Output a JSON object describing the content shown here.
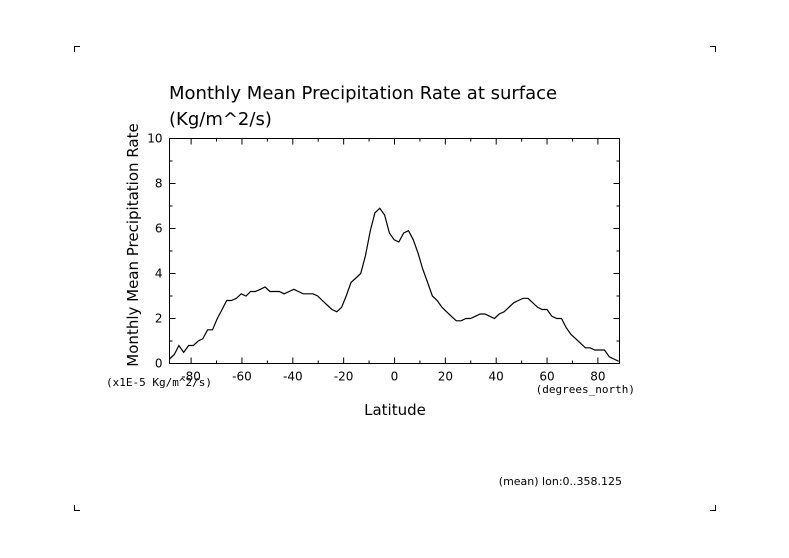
{
  "chart_data": {
    "type": "line",
    "title": "Monthly Mean Precipitation Rate at surface",
    "subtitle": "(Kg/m^2/s)",
    "xlabel": "Latitude",
    "ylabel": "Monthly Mean Precipitation Rate",
    "x_units": "(degrees_north)",
    "y_units": "(x1E-5 Kg/m^2/s)",
    "footnote": "(mean) lon:0..358.125",
    "xlim": [
      -88.5,
      88.5
    ],
    "ylim": [
      0,
      10
    ],
    "x_ticks": [
      -80,
      -60,
      -40,
      -20,
      0,
      20,
      40,
      60,
      80
    ],
    "x_tick_labels": [
      "-80",
      "-60",
      "-40",
      "-20",
      "0",
      "20",
      "40",
      "60",
      "80"
    ],
    "y_ticks": [
      0,
      2,
      4,
      6,
      8,
      10
    ],
    "y_tick_labels": [
      "0",
      "2",
      "4",
      "6",
      "8",
      "10"
    ],
    "grid": false,
    "legend": "none",
    "series": [
      {
        "color": "#000000",
        "x": [
          -88.5,
          -86.6,
          -84.8,
          -82.9,
          -81.0,
          -79.1,
          -77.2,
          -75.4,
          -73.5,
          -71.6,
          -69.7,
          -67.8,
          -66.0,
          -64.1,
          -62.2,
          -60.3,
          -58.4,
          -56.6,
          -54.7,
          -52.8,
          -50.9,
          -49.0,
          -47.2,
          -45.3,
          -43.4,
          -41.5,
          -39.6,
          -37.8,
          -35.9,
          -34.0,
          -32.1,
          -30.2,
          -28.4,
          -26.5,
          -24.6,
          -22.7,
          -20.8,
          -19.0,
          -17.1,
          -15.2,
          -13.3,
          -11.4,
          -9.5,
          -7.7,
          -5.8,
          -3.9,
          -2.0,
          -0.1,
          1.7,
          3.6,
          5.5,
          7.4,
          9.3,
          11.1,
          13.0,
          14.9,
          16.8,
          18.7,
          20.5,
          22.4,
          24.3,
          26.2,
          28.1,
          29.9,
          31.8,
          33.7,
          35.6,
          37.5,
          39.3,
          41.2,
          43.1,
          45.0,
          46.9,
          48.7,
          50.6,
          52.5,
          54.4,
          56.3,
          58.1,
          60.0,
          61.9,
          63.8,
          65.7,
          67.5,
          69.4,
          71.3,
          73.2,
          75.1,
          76.9,
          78.8,
          80.7,
          82.6,
          84.5,
          86.3,
          88.2
        ],
        "y": [
          0.2,
          0.4,
          0.8,
          0.5,
          0.8,
          0.8,
          1.0,
          1.1,
          1.5,
          1.5,
          2.0,
          2.4,
          2.8,
          2.8,
          2.9,
          3.1,
          3.0,
          3.2,
          3.2,
          3.3,
          3.4,
          3.2,
          3.2,
          3.2,
          3.1,
          3.2,
          3.3,
          3.2,
          3.1,
          3.1,
          3.1,
          3.0,
          2.8,
          2.6,
          2.4,
          2.3,
          2.5,
          3.0,
          3.6,
          3.8,
          4.0,
          4.8,
          5.9,
          6.7,
          6.9,
          6.6,
          5.8,
          5.5,
          5.4,
          5.8,
          5.9,
          5.5,
          4.9,
          4.2,
          3.6,
          3.0,
          2.8,
          2.5,
          2.3,
          2.1,
          1.9,
          1.9,
          2.0,
          2.0,
          2.1,
          2.2,
          2.2,
          2.1,
          2.0,
          2.2,
          2.3,
          2.5,
          2.7,
          2.8,
          2.9,
          2.9,
          2.7,
          2.5,
          2.4,
          2.4,
          2.1,
          2.0,
          2.0,
          1.6,
          1.3,
          1.1,
          0.9,
          0.7,
          0.7,
          0.6,
          0.6,
          0.6,
          0.3,
          0.2,
          0.1
        ]
      }
    ]
  }
}
